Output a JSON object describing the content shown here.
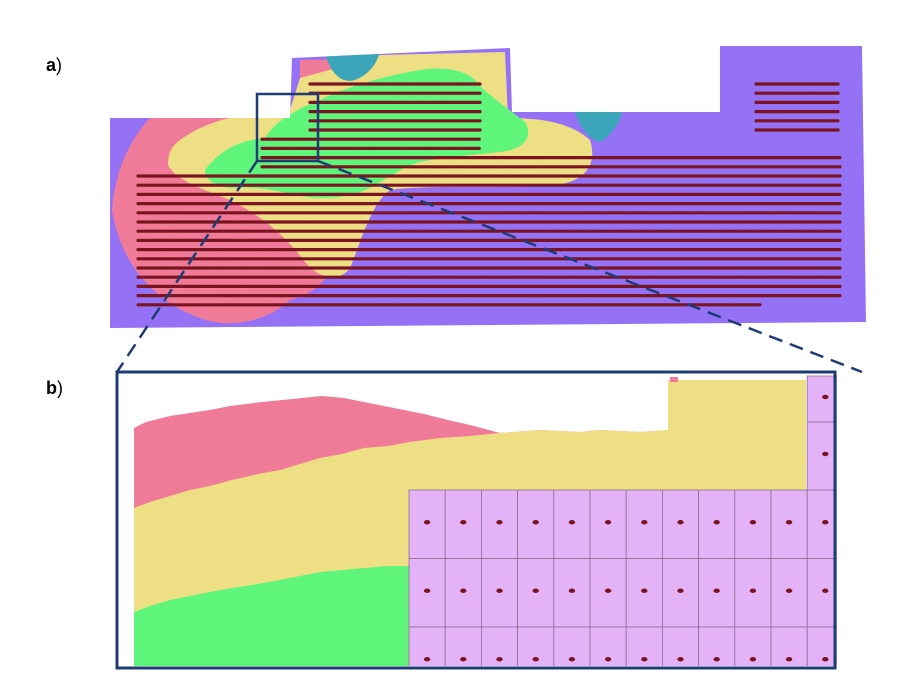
{
  "labels": {
    "a_letter": "a",
    "a_paren": ")",
    "b_letter": "b",
    "b_paren": ")"
  },
  "colors": {
    "violet": "#9572f5",
    "pink": "#f07b98",
    "yellow": "#efdf84",
    "green": "#5ff57a",
    "teal": "#3ba6b9",
    "dot": "#7a1420",
    "inset_frame": "#1f3c74",
    "cell_fill": "#e3b2f7",
    "cell_line": "#8c6f8f"
  },
  "panel_a": {
    "point_rows": 25
  },
  "panel_b": {
    "grid_columns": 12,
    "grid_rows": 3
  }
}
